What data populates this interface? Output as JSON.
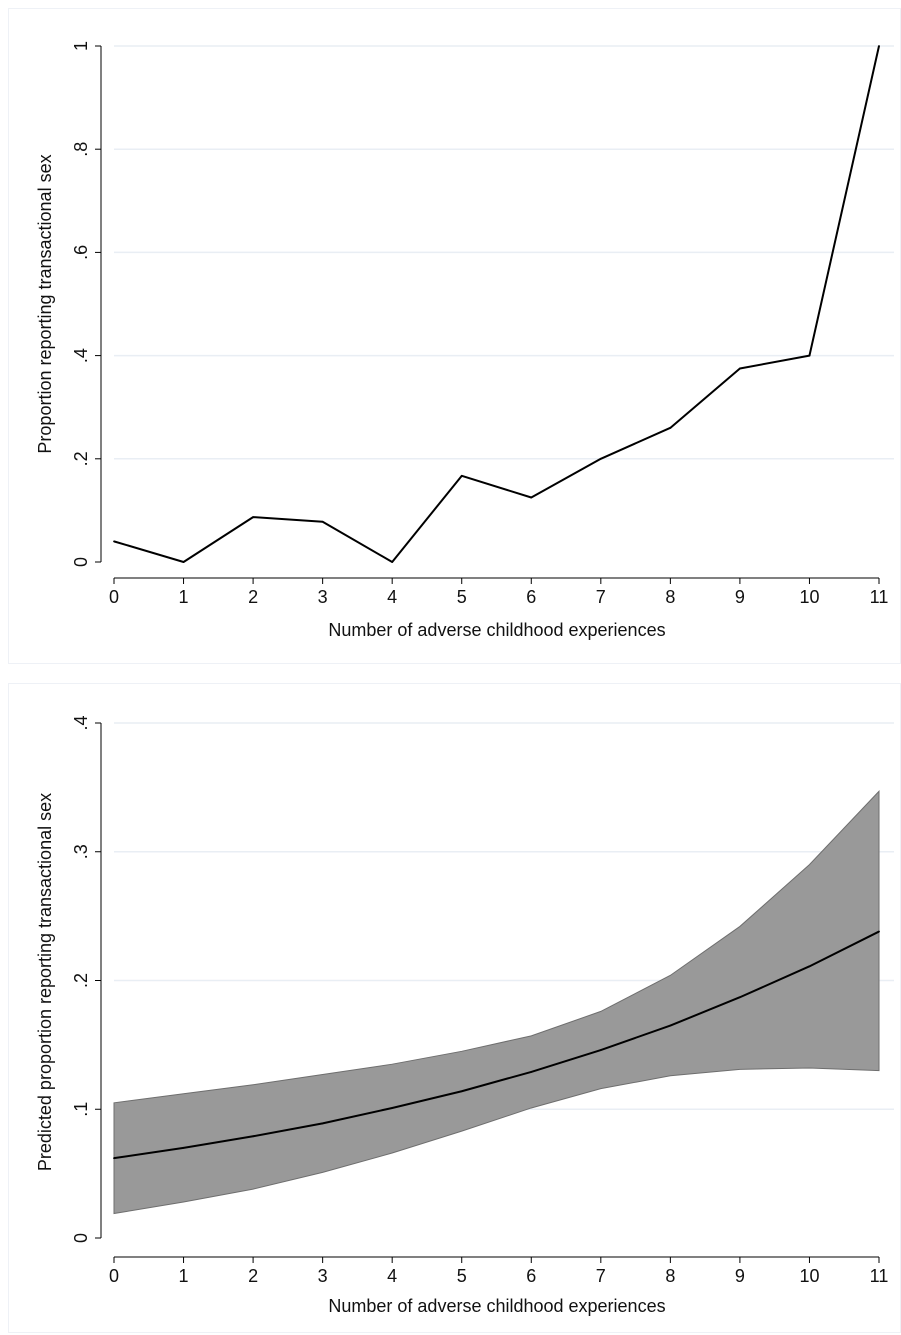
{
  "chart_data": [
    {
      "type": "line",
      "title": "",
      "xlabel": "Number of adverse childhood experiences",
      "ylabel": "Proportion reporting transactional sex",
      "x": [
        0,
        1,
        2,
        3,
        4,
        5,
        6,
        7,
        8,
        9,
        10,
        11
      ],
      "series": [
        {
          "values": [
            0.04,
            0.0,
            0.087,
            0.078,
            0.0,
            0.167,
            0.125,
            0.2,
            0.26,
            0.375,
            0.4,
            1.0
          ]
        }
      ],
      "xlim": [
        0,
        11
      ],
      "ylim": [
        0,
        1
      ],
      "xticks": [
        "0",
        "1",
        "2",
        "3",
        "4",
        "5",
        "6",
        "7",
        "8",
        "9",
        "10",
        "11"
      ],
      "yticks": [
        "0",
        ".2",
        ".4",
        ".6",
        ".8",
        "1"
      ],
      "ytick_values": [
        0,
        0.2,
        0.4,
        0.6,
        0.8,
        1
      ],
      "grid": true,
      "colors": {
        "line": "#000000",
        "grid": "#e9eef4"
      }
    },
    {
      "type": "area",
      "title": "",
      "xlabel": "Number of adverse childhood experiences",
      "ylabel": "Predicted proportion reporting transactional sex",
      "x": [
        0,
        1,
        2,
        3,
        4,
        5,
        6,
        7,
        8,
        9,
        10,
        11
      ],
      "series": [
        {
          "values": [
            0.062,
            0.07,
            0.079,
            0.089,
            0.101,
            0.114,
            0.129,
            0.146,
            0.165,
            0.187,
            0.211,
            0.238
          ]
        }
      ],
      "ci_lower": [
        0.019,
        0.028,
        0.038,
        0.051,
        0.066,
        0.083,
        0.101,
        0.116,
        0.126,
        0.131,
        0.132,
        0.13
      ],
      "ci_upper": [
        0.105,
        0.112,
        0.119,
        0.127,
        0.135,
        0.145,
        0.157,
        0.176,
        0.204,
        0.242,
        0.29,
        0.347
      ],
      "xlim": [
        0,
        11
      ],
      "ylim": [
        0,
        0.4
      ],
      "xticks": [
        "0",
        "1",
        "2",
        "3",
        "4",
        "5",
        "6",
        "7",
        "8",
        "9",
        "10",
        "11"
      ],
      "yticks": [
        "0",
        ".1",
        ".2",
        ".3",
        ".4"
      ],
      "ytick_values": [
        0,
        0.1,
        0.2,
        0.3,
        0.4
      ],
      "grid": true,
      "colors": {
        "line": "#000000",
        "band": "#999999",
        "band_edge": "#6e6e6e",
        "grid": "#e9eef4"
      }
    }
  ]
}
